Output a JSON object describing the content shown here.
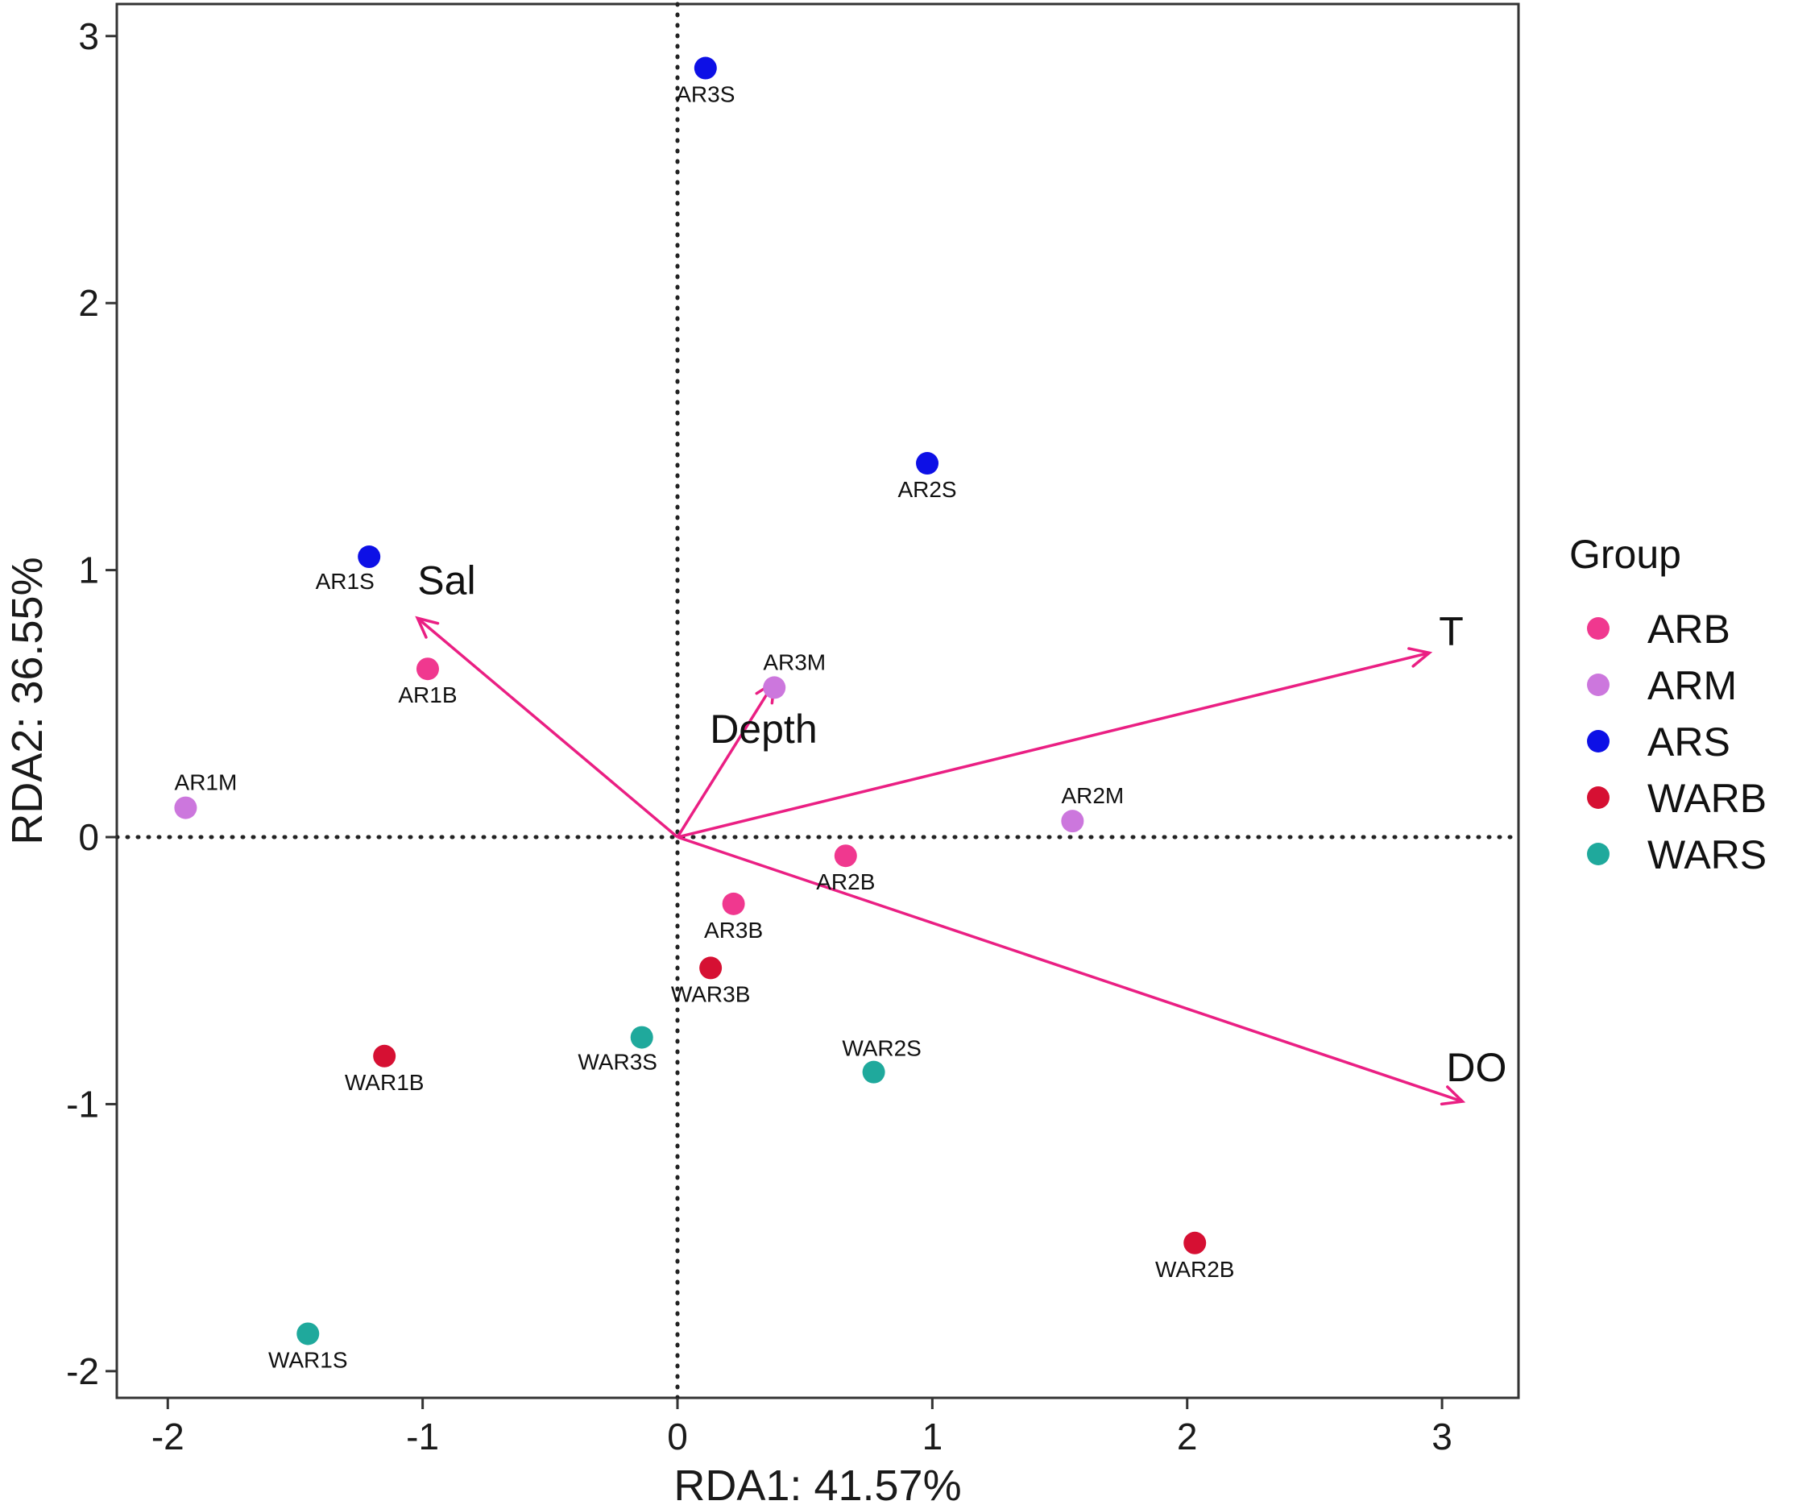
{
  "chart_data": {
    "type": "scatter",
    "subtype": "RDA biplot",
    "xlabel": "RDA1: 41.57%",
    "ylabel": "RDA2: 36.55%",
    "xlim": [
      -2.2,
      3.3
    ],
    "ylim": [
      -2.1,
      3.12
    ],
    "xticks": [
      -2,
      -1,
      0,
      1,
      2,
      3
    ],
    "yticks": [
      -2,
      -1,
      0,
      1,
      2,
      3
    ],
    "xtick_labels": [
      "-2",
      "-1",
      "0",
      "1",
      "2",
      "3"
    ],
    "ytick_labels": [
      "-2",
      "-1",
      "0",
      "1",
      "2",
      "3"
    ],
    "reference_lines": {
      "x": 0,
      "y": 0,
      "style": "dotted"
    },
    "groups": [
      {
        "name": "ARB",
        "color": "#f0388f"
      },
      {
        "name": "ARM",
        "color": "#cc77dd"
      },
      {
        "name": "ARS",
        "color": "#0d10e6"
      },
      {
        "name": "WARB",
        "color": "#d61033"
      },
      {
        "name": "WARS",
        "color": "#1fa99c"
      }
    ],
    "points": [
      {
        "label": "AR3S",
        "group": "ARS",
        "x": 0.11,
        "y": 2.88,
        "label_pos": "below"
      },
      {
        "label": "AR2S",
        "group": "ARS",
        "x": 0.98,
        "y": 1.4,
        "label_pos": "below"
      },
      {
        "label": "AR1S",
        "group": "ARS",
        "x": -1.21,
        "y": 1.05,
        "label_pos": "below-left"
      },
      {
        "label": "AR1B",
        "group": "ARB",
        "x": -0.98,
        "y": 0.63,
        "label_pos": "below"
      },
      {
        "label": "AR3M",
        "group": "ARM",
        "x": 0.38,
        "y": 0.56,
        "label_pos": "above-right"
      },
      {
        "label": "AR1M",
        "group": "ARM",
        "x": -1.93,
        "y": 0.11,
        "label_pos": "above-right"
      },
      {
        "label": "AR2M",
        "group": "ARM",
        "x": 1.55,
        "y": 0.06,
        "label_pos": "above-right"
      },
      {
        "label": "AR2B",
        "group": "ARB",
        "x": 0.66,
        "y": -0.07,
        "label_pos": "below"
      },
      {
        "label": "AR3B",
        "group": "ARB",
        "x": 0.22,
        "y": -0.25,
        "label_pos": "below"
      },
      {
        "label": "WAR3B",
        "group": "WARB",
        "x": 0.13,
        "y": -0.49,
        "label_pos": "below"
      },
      {
        "label": "WAR3S",
        "group": "WARS",
        "x": -0.14,
        "y": -0.75,
        "label_pos": "below-left"
      },
      {
        "label": "WAR1B",
        "group": "WARB",
        "x": -1.15,
        "y": -0.82,
        "label_pos": "below"
      },
      {
        "label": "WAR2S",
        "group": "WARS",
        "x": 0.77,
        "y": -0.88,
        "label_pos": "above"
      },
      {
        "label": "WAR2B",
        "group": "WARB",
        "x": 2.03,
        "y": -1.52,
        "label_pos": "below"
      },
      {
        "label": "WAR1S",
        "group": "WARS",
        "x": -1.45,
        "y": -1.86,
        "label_pos": "below"
      }
    ],
    "vectors": [
      {
        "label": "Sal",
        "x": -1.02,
        "y": 0.82
      },
      {
        "label": "Depth",
        "x": 0.38,
        "y": 0.58
      },
      {
        "label": "T",
        "x": 2.95,
        "y": 0.69
      },
      {
        "label": "DO",
        "x": 3.08,
        "y": -0.99
      }
    ],
    "vector_color": "#ea1f83",
    "legend": {
      "title": "Group",
      "position": "right"
    }
  }
}
